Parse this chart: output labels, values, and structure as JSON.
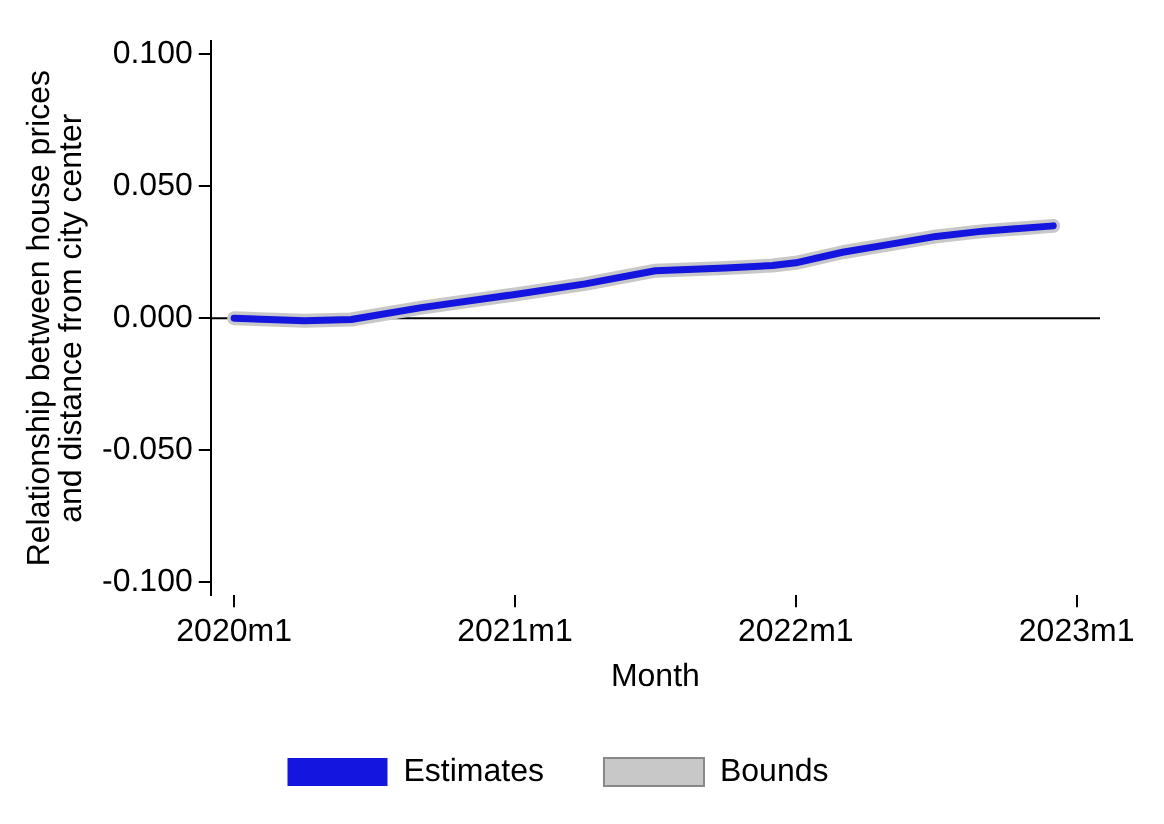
{
  "chart_data": {
    "type": "line",
    "xlabel": "Month",
    "ylabel": "Relationship between house prices\nand distance from city center",
    "x": [
      "2020-01",
      "2020-04",
      "2020-06",
      "2020-09",
      "2021-01",
      "2021-04",
      "2021-07",
      "2021-10",
      "2021-12",
      "2022-01",
      "2022-03",
      "2022-05",
      "2022-07",
      "2022-09",
      "2022-12"
    ],
    "series": [
      {
        "name": "Estimates",
        "color": "#1515e0",
        "values": [
          0.0,
          -0.001,
          -0.0005,
          0.004,
          0.009,
          0.013,
          0.018,
          0.019,
          0.02,
          0.021,
          0.025,
          0.028,
          0.031,
          0.033,
          0.035
        ]
      },
      {
        "name": "Bounds",
        "color": "#c8c8c8",
        "values": [
          0.0,
          -0.001,
          -0.0005,
          0.004,
          0.009,
          0.013,
          0.018,
          0.019,
          0.02,
          0.021,
          0.025,
          0.028,
          0.031,
          0.033,
          0.035
        ]
      }
    ],
    "xlim": [
      "2019-12",
      "2023-02"
    ],
    "xticks": [
      {
        "value": "2020-01",
        "label": "2020m1"
      },
      {
        "value": "2021-01",
        "label": "2021m1"
      },
      {
        "value": "2022-01",
        "label": "2022m1"
      },
      {
        "value": "2023-01",
        "label": "2023m1"
      }
    ],
    "ylim": [
      -0.105,
      0.105
    ],
    "yticks": [
      {
        "value": -0.1,
        "label": "-0.100"
      },
      {
        "value": -0.05,
        "label": "-0.050"
      },
      {
        "value": 0,
        "label": "0.000"
      },
      {
        "value": 0.05,
        "label": "0.050"
      },
      {
        "value": 0.1,
        "label": "0.100"
      }
    ],
    "ref_lines": [
      {
        "axis": "y",
        "value": 0,
        "color": "#000000"
      }
    ],
    "grid": false,
    "legend": "bottom",
    "marker": "none",
    "line_style": "solid"
  }
}
